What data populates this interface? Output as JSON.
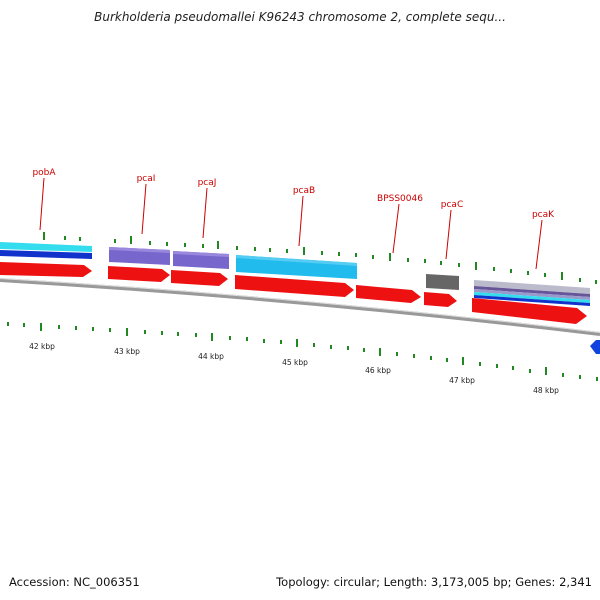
{
  "title": "Burkholderia pseudomallei K96243 chromosome 2, complete sequ...",
  "footer": {
    "accession": "Accession: NC_006351",
    "summary": "Topology: circular; Length: 3,173,005 bp; Genes: 2,341"
  },
  "genes": [
    "pobA",
    "pcaI",
    "pcaJ",
    "pcaB",
    "BPSS0046",
    "pcaC",
    "pcaK"
  ],
  "scale_labels": [
    "42 kbp",
    "43 kbp",
    "44 kbp",
    "45 kbp",
    "46 kbp",
    "47 kbp",
    "48 kbp"
  ],
  "colors": {
    "cds": "#ee1111",
    "pobA_top": "#33ddee",
    "pobA_bottom": "#1133cc",
    "pcaIJ": "#7766cc",
    "pcaB": "#22bbee",
    "pcaC": "#666666",
    "pcaK": "#bbbbcc",
    "backbone": "#999999",
    "label": "#cc0000",
    "tick": "#228822",
    "next_feature": "#1144dd"
  }
}
